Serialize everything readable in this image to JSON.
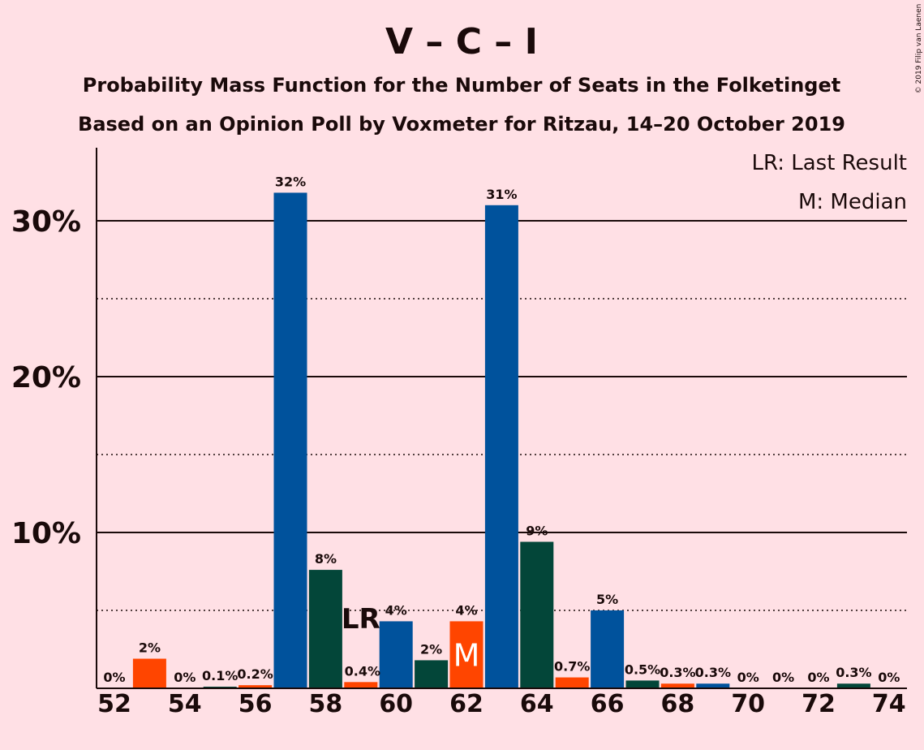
{
  "copyright": "© 2019 Filip van Laenen",
  "chart_data": {
    "type": "bar",
    "title": "V – C – I",
    "subtitle_1": "Probability Mass Function for the Number of Seats in the Folketinget",
    "subtitle_2": "Based on an Opinion Poll by Voxmeter for Ritzau, 14–20 October 2019",
    "legend": [
      "LR: Last Result",
      "M: Median"
    ],
    "legend_position": "top-right",
    "ylim": [
      0,
      34.5
    ],
    "yticks": [
      {
        "value": 10,
        "label": "10%"
      },
      {
        "value": 20,
        "label": "20%"
      },
      {
        "value": 30,
        "label": "30%"
      }
    ],
    "minor_gridlines": [
      5,
      15,
      25
    ],
    "xticks": [
      "52",
      "54",
      "56",
      "58",
      "60",
      "62",
      "64",
      "66",
      "68",
      "70",
      "72",
      "74"
    ],
    "last_result_seat": 59,
    "last_result_label": "LR",
    "median_seat": 62,
    "median_label": "M",
    "colors": [
      "#ff4500",
      "#00529c",
      "#034639"
    ],
    "bars": [
      {
        "seat": 52,
        "value": 0,
        "label": "0%",
        "color": "#00529c"
      },
      {
        "seat": 53,
        "value": 1.9,
        "label": "2%",
        "color": "#ff4500"
      },
      {
        "seat": 54,
        "value": 0,
        "label": "0%",
        "color": "#00529c"
      },
      {
        "seat": 55,
        "value": 0.1,
        "label": "0.1%",
        "color": "#034639"
      },
      {
        "seat": 56,
        "value": 0.2,
        "label": "0.2%",
        "color": "#ff4500"
      },
      {
        "seat": 57,
        "value": 31.8,
        "label": "32%",
        "color": "#00529c"
      },
      {
        "seat": 58,
        "value": 7.6,
        "label": "8%",
        "color": "#034639"
      },
      {
        "seat": 59,
        "value": 0.4,
        "label": "0.4%",
        "color": "#ff4500"
      },
      {
        "seat": 60,
        "value": 4.3,
        "label": "4%",
        "color": "#00529c"
      },
      {
        "seat": 61,
        "value": 1.8,
        "label": "2%",
        "color": "#034639"
      },
      {
        "seat": 62,
        "value": 4.3,
        "label": "4%",
        "color": "#ff4500"
      },
      {
        "seat": 63,
        "value": 31.0,
        "label": "31%",
        "color": "#00529c"
      },
      {
        "seat": 64,
        "value": 9.4,
        "label": "9%",
        "color": "#034639"
      },
      {
        "seat": 65,
        "value": 0.7,
        "label": "0.7%",
        "color": "#ff4500"
      },
      {
        "seat": 66,
        "value": 5.0,
        "label": "5%",
        "color": "#00529c"
      },
      {
        "seat": 67,
        "value": 0.5,
        "label": "0.5%",
        "color": "#034639"
      },
      {
        "seat": 68,
        "value": 0.3,
        "label": "0.3%",
        "color": "#ff4500"
      },
      {
        "seat": 69,
        "value": 0.3,
        "label": "0.3%",
        "color": "#00529c"
      },
      {
        "seat": 70,
        "value": 0,
        "label": "0%",
        "color": "#034639"
      },
      {
        "seat": 71,
        "value": 0,
        "label": "0%",
        "color": "#ff4500"
      },
      {
        "seat": 72,
        "value": 0,
        "label": "0%",
        "color": "#00529c"
      },
      {
        "seat": 73,
        "value": 0.3,
        "label": "0.3%",
        "color": "#034639"
      },
      {
        "seat": 74,
        "value": 0,
        "label": "0%",
        "color": "#ff4500"
      }
    ]
  }
}
